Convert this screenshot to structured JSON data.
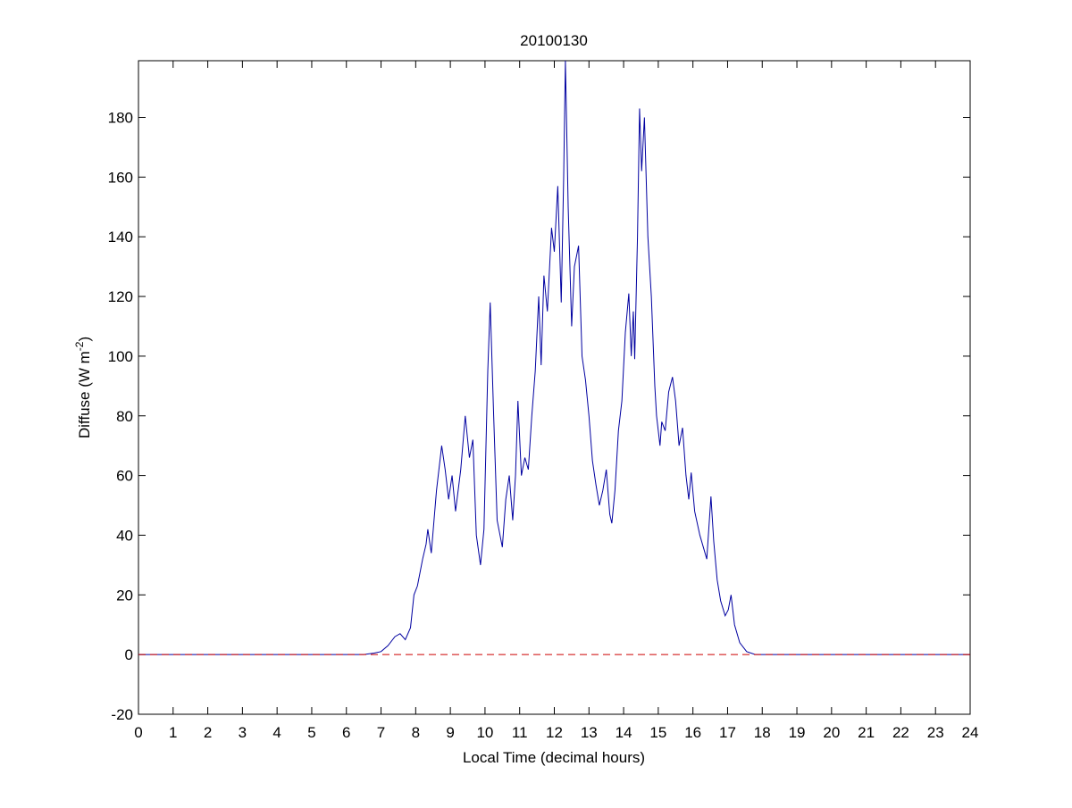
{
  "chart_data": {
    "type": "line",
    "title": "20100130",
    "xlabel": "Local Time (decimal hours)",
    "ylabel": "Diffuse (W m",
    "ylabel_superscript": "-2",
    "ylabel_end": ")",
    "color": "#0000a0",
    "x": [
      0,
      6.5,
      6.8,
      7.0,
      7.2,
      7.4,
      7.55,
      7.7,
      7.85,
      7.95,
      8.05,
      8.2,
      8.3,
      8.35,
      8.45,
      8.6,
      8.75,
      8.85,
      8.95,
      9.05,
      9.15,
      9.3,
      9.43,
      9.55,
      9.65,
      9.75,
      9.87,
      9.97,
      10.08,
      10.15,
      10.25,
      10.35,
      10.5,
      10.6,
      10.7,
      10.8,
      10.88,
      10.95,
      11.05,
      11.15,
      11.25,
      11.35,
      11.45,
      11.55,
      11.62,
      11.7,
      11.8,
      11.92,
      12.0,
      12.1,
      12.2,
      12.27,
      12.32,
      12.4,
      12.5,
      12.58,
      12.7,
      12.8,
      12.9,
      13.0,
      13.1,
      13.2,
      13.3,
      13.4,
      13.5,
      13.6,
      13.66,
      13.75,
      13.85,
      13.95,
      14.05,
      14.15,
      14.22,
      14.28,
      14.32,
      14.4,
      14.46,
      14.52,
      14.6,
      14.7,
      14.8,
      14.9,
      14.95,
      15.05,
      15.1,
      15.2,
      15.3,
      15.41,
      15.5,
      15.6,
      15.7,
      15.8,
      15.88,
      15.95,
      16.05,
      16.2,
      16.3,
      16.4,
      16.52,
      16.6,
      16.7,
      16.8,
      16.93,
      17.02,
      17.1,
      17.2,
      17.35,
      17.55,
      17.8,
      24
    ],
    "values": [
      0,
      0,
      0.5,
      1,
      3,
      6,
      7,
      5,
      9,
      20,
      23,
      32,
      37,
      42,
      34,
      55,
      70,
      62,
      52,
      60,
      48,
      62,
      80,
      66,
      72,
      40,
      30,
      42,
      95,
      118,
      80,
      45,
      36,
      52,
      60,
      45,
      60,
      85,
      60,
      66,
      62,
      80,
      95,
      120,
      97,
      127,
      115,
      143,
      135,
      157,
      118,
      160,
      199,
      150,
      110,
      130,
      137,
      100,
      92,
      80,
      65,
      57,
      50,
      55,
      62,
      47,
      44,
      55,
      75,
      85,
      108,
      121,
      100,
      115,
      99,
      140,
      183,
      162,
      180,
      140,
      120,
      90,
      80,
      70,
      78,
      75,
      88,
      93,
      85,
      70,
      76,
      60,
      52,
      61,
      48,
      40,
      36,
      32,
      53,
      38,
      25,
      18,
      13,
      15,
      20,
      10,
      4,
      1,
      0,
      0
    ],
    "reference_line": {
      "value": 0,
      "color": "#cc0000"
    },
    "xlim": [
      0,
      24
    ],
    "xticks": [
      0,
      1,
      2,
      3,
      4,
      5,
      6,
      7,
      8,
      9,
      10,
      11,
      12,
      13,
      14,
      15,
      16,
      17,
      18,
      19,
      20,
      21,
      22,
      23,
      24
    ],
    "ylim": [
      -20,
      199
    ],
    "yticks": [
      -20,
      0,
      20,
      40,
      60,
      80,
      100,
      120,
      140,
      160,
      180
    ]
  }
}
